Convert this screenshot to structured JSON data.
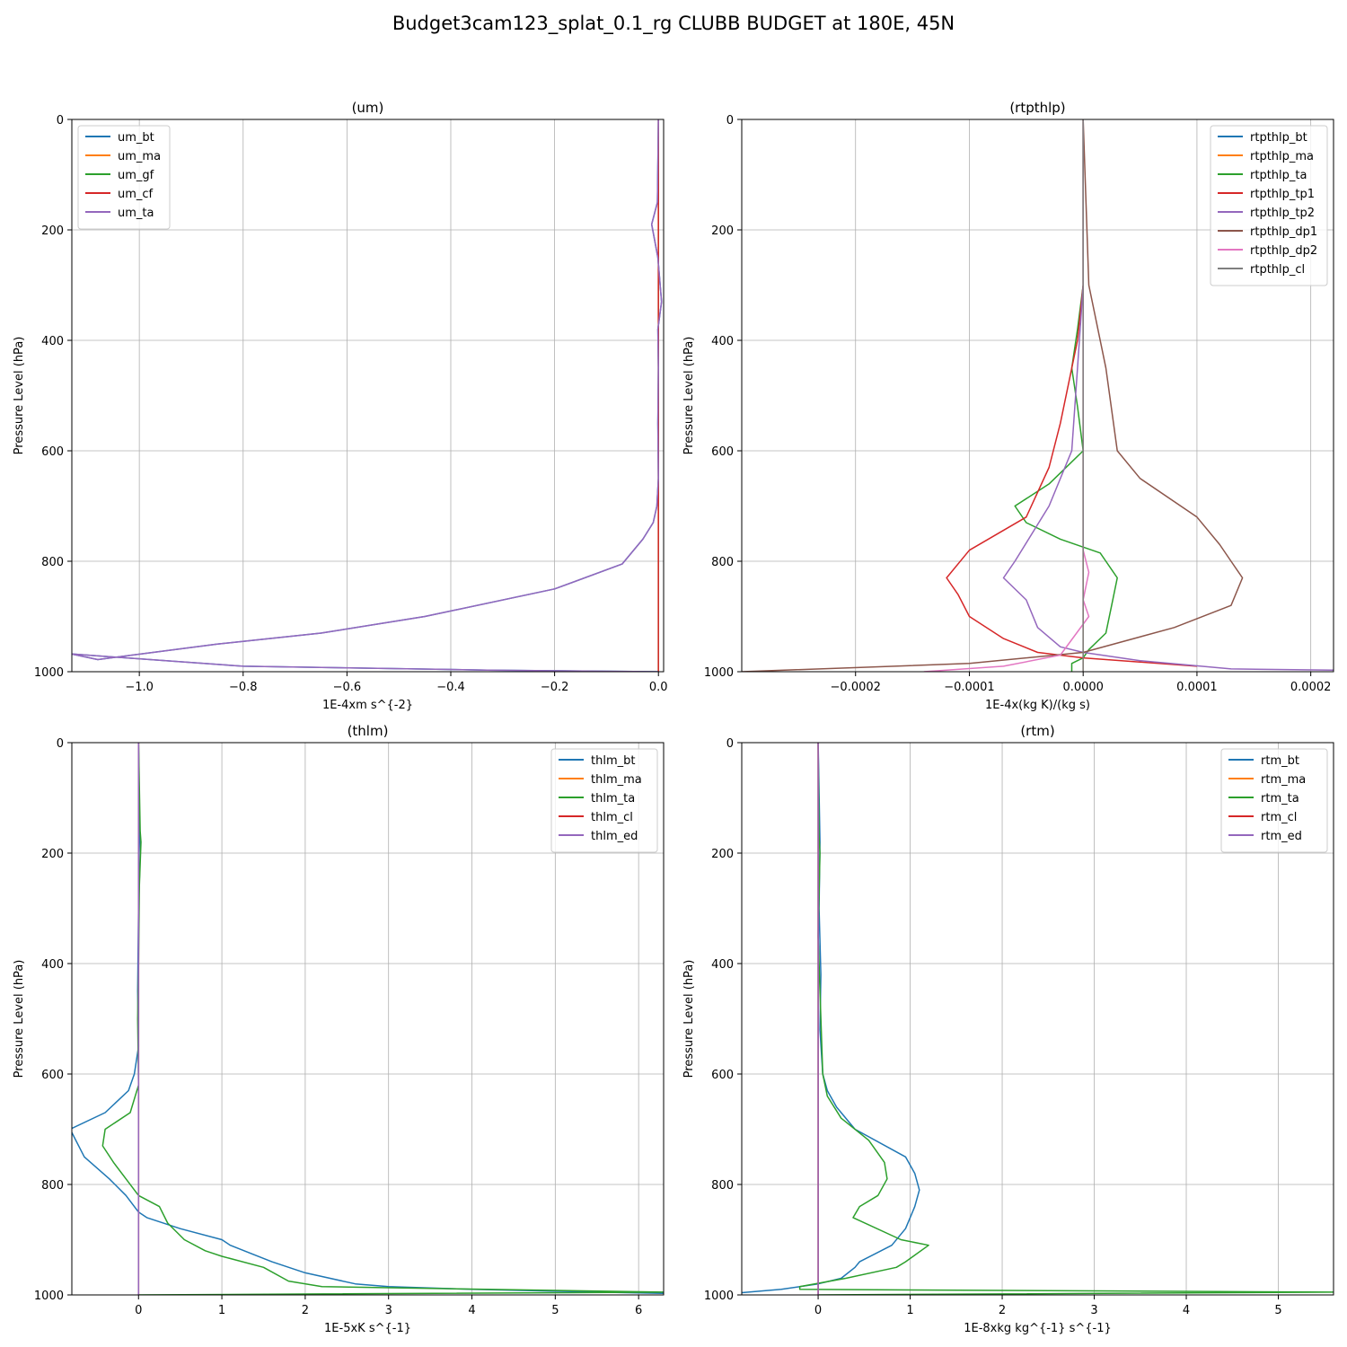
{
  "suptitle": "Budget3cam123_splat_0.1_rg CLUBB BUDGET at 180E, 45N",
  "chart_data": [
    {
      "type": "line",
      "title": "(um)",
      "xlabel": "1E-4xm s^{-2}",
      "ylabel": "Pressure Level (hPa)",
      "xlim": [
        -1.13,
        0.01
      ],
      "ylim": [
        1000,
        0
      ],
      "xticks": [
        -1.0,
        -0.8,
        -0.6,
        -0.4,
        -0.2,
        0.0
      ],
      "xtick_labels": [
        "−1.0",
        "−0.8",
        "−0.6",
        "−0.4",
        "−0.2",
        "0.0"
      ],
      "yticks": [
        0,
        200,
        400,
        600,
        800,
        1000
      ],
      "ytick_labels": [
        "0",
        "200",
        "400",
        "600",
        "800",
        "1000"
      ],
      "grid": true,
      "legend_loc": "top-left",
      "series": [
        {
          "name": "um_bt",
          "color": "#1f77b4",
          "x": [
            0,
            -0.002,
            -0.013,
            -0.001,
            0.006,
            -0.001,
            0.0,
            -0.001,
            0.0,
            -0.003,
            -0.01,
            -0.03,
            -0.07,
            -0.2,
            -0.45,
            -0.65,
            -0.85,
            -1.08,
            -1.13,
            -0.8,
            -0.33,
            0
          ],
          "y": [
            0,
            150,
            190,
            250,
            330,
            380,
            450,
            550,
            650,
            700,
            730,
            760,
            805,
            850,
            900,
            930,
            950,
            978,
            968,
            990,
            997,
            1000
          ]
        },
        {
          "name": "um_ma",
          "color": "#ff7f0e",
          "x": [
            0,
            0,
            0,
            0,
            0,
            0
          ],
          "y": [
            0,
            200,
            400,
            600,
            800,
            1000
          ]
        },
        {
          "name": "um_gf",
          "color": "#2ca02c",
          "x": [
            0,
            0,
            0,
            0,
            0,
            0
          ],
          "y": [
            0,
            200,
            400,
            600,
            800,
            1000
          ]
        },
        {
          "name": "um_cf",
          "color": "#d62728",
          "x": [
            0,
            0,
            0,
            0,
            0,
            0
          ],
          "y": [
            0,
            200,
            400,
            600,
            800,
            1000
          ]
        },
        {
          "name": "um_ta",
          "color": "#9467bd",
          "x": [
            0,
            -0.002,
            -0.013,
            -0.001,
            0.006,
            -0.001,
            0.0,
            -0.001,
            0.0,
            -0.003,
            -0.01,
            -0.03,
            -0.07,
            -0.2,
            -0.45,
            -0.65,
            -0.85,
            -1.08,
            -1.13,
            -0.8,
            -0.33,
            0
          ],
          "y": [
            0,
            150,
            190,
            250,
            330,
            380,
            450,
            550,
            650,
            700,
            730,
            760,
            805,
            850,
            900,
            930,
            950,
            978,
            968,
            990,
            997,
            1000
          ]
        }
      ]
    },
    {
      "type": "line",
      "title": "(rtpthlp)",
      "xlabel": "1E-4x(kg K)/(kg s)",
      "ylabel": "Pressure Level (hPa)",
      "xlim": [
        -0.0003,
        0.00022
      ],
      "ylim": [
        1000,
        0
      ],
      "xticks": [
        -0.0002,
        -0.0001,
        0.0,
        0.0001,
        0.0002
      ],
      "xtick_labels": [
        "−0.0002",
        "−0.0001",
        "0.0000",
        "0.0001",
        "0.0002"
      ],
      "yticks": [
        0,
        200,
        400,
        600,
        800,
        1000
      ],
      "ytick_labels": [
        "0",
        "200",
        "400",
        "600",
        "800",
        "1000"
      ],
      "grid": true,
      "legend_loc": "top-right",
      "series": [
        {
          "name": "rtpthlp_bt",
          "color": "#1f77b4",
          "x": [
            0,
            0,
            0,
            0,
            0
          ],
          "y": [
            0,
            300,
            600,
            900,
            1000
          ]
        },
        {
          "name": "rtpthlp_ma",
          "color": "#ff7f0e",
          "x": [
            0,
            0,
            0,
            0,
            0
          ],
          "y": [
            0,
            300,
            600,
            900,
            1000
          ]
        },
        {
          "name": "rtpthlp_ta",
          "color": "#2ca02c",
          "x": [
            0,
            0,
            -5e-06,
            -1e-05,
            -5e-06,
            0,
            -3e-05,
            -6e-05,
            -5e-05,
            -2e-05,
            1.5e-05,
            2e-05,
            3e-05,
            2.5e-05,
            2e-05,
            5e-06,
            0.0,
            -1e-05,
            -1e-05
          ],
          "y": [
            0,
            300,
            380,
            450,
            520,
            600,
            660,
            700,
            730,
            760,
            785,
            800,
            830,
            880,
            930,
            960,
            975,
            985,
            1000
          ]
        },
        {
          "name": "rtpthlp_tp1",
          "color": "#d62728",
          "x": [
            0,
            0,
            -5e-06,
            -2e-05,
            -3e-05,
            -5e-05,
            -0.0001,
            -0.00012,
            -0.00011,
            -0.0001,
            -7e-05,
            -4e-05,
            0.0,
            0.0001
          ],
          "y": [
            0,
            300,
            400,
            550,
            630,
            720,
            780,
            830,
            860,
            900,
            940,
            965,
            975,
            990
          ]
        },
        {
          "name": "rtpthlp_tp2",
          "color": "#9467bd",
          "x": [
            0,
            0,
            -5e-06,
            -1e-05,
            -3e-05,
            -6e-05,
            -7e-05,
            -5e-05,
            -4e-05,
            -2e-05,
            0.0,
            5e-05,
            0.00013,
            0.00022
          ],
          "y": [
            0,
            300,
            450,
            600,
            700,
            800,
            830,
            870,
            920,
            955,
            965,
            980,
            995,
            997
          ]
        },
        {
          "name": "rtpthlp_dp1",
          "color": "#8c564b",
          "x": [
            0,
            5e-06,
            2e-05,
            3e-05,
            5e-05,
            0.0001,
            0.00012,
            0.00013,
            0.00014,
            0.00013,
            8e-05,
            0.0,
            -0.0001,
            -0.0003
          ],
          "y": [
            0,
            300,
            450,
            600,
            650,
            720,
            770,
            800,
            830,
            880,
            920,
            965,
            985,
            1000
          ]
        },
        {
          "name": "rtpthlp_dp2",
          "color": "#e377c2",
          "x": [
            0,
            0,
            5e-06,
            0.0,
            5e-06,
            -2e-05,
            -7e-05,
            -0.00014
          ],
          "y": [
            0,
            780,
            820,
            870,
            900,
            970,
            990,
            1000
          ]
        },
        {
          "name": "rtpthlp_cl",
          "color": "#7f7f7f",
          "x": [
            0,
            0,
            0,
            0
          ],
          "y": [
            0,
            500,
            900,
            1000
          ]
        }
      ]
    },
    {
      "type": "line",
      "title": "(thlm)",
      "xlabel": "1E-5xK s^{-1}",
      "ylabel": "Pressure Level (hPa)",
      "xlim": [
        -0.8,
        6.3
      ],
      "ylim": [
        1000,
        0
      ],
      "xticks": [
        0,
        1,
        2,
        3,
        4,
        5,
        6
      ],
      "xtick_labels": [
        "0",
        "1",
        "2",
        "3",
        "4",
        "5",
        "6"
      ],
      "yticks": [
        0,
        200,
        400,
        600,
        800,
        1000
      ],
      "ytick_labels": [
        "0",
        "200",
        "400",
        "600",
        "800",
        "1000"
      ],
      "grid": true,
      "legend_loc": "top-right",
      "series": [
        {
          "name": "thlm_bt",
          "color": "#1f77b4",
          "x": [
            0,
            0.01,
            0.02,
            0.0,
            -0.01,
            0.0,
            -0.05,
            -0.12,
            -0.4,
            -0.82,
            -0.65,
            -0.35,
            -0.15,
            0.0,
            0.1,
            0.5,
            1.0,
            1.1,
            1.6,
            2.0,
            2.6,
            3.0,
            4.0,
            5.5,
            6.3
          ],
          "y": [
            0,
            150,
            200,
            300,
            450,
            550,
            600,
            630,
            670,
            700,
            750,
            790,
            820,
            850,
            860,
            880,
            900,
            910,
            940,
            960,
            980,
            985,
            990,
            995,
            997
          ]
        },
        {
          "name": "thlm_ma",
          "color": "#ff7f0e",
          "x": [
            0,
            0,
            0,
            0
          ],
          "y": [
            0,
            400,
            800,
            1000
          ]
        },
        {
          "name": "thlm_ta",
          "color": "#2ca02c",
          "x": [
            0,
            0.02,
            0.03,
            0.01,
            0.0,
            -0.01,
            0.0,
            -0.1,
            -0.4,
            -0.43,
            -0.3,
            -0.15,
            0.0,
            0.25,
            0.35,
            0.55,
            0.8,
            1.0,
            1.5,
            1.8,
            2.2,
            6.3,
            0.0
          ],
          "y": [
            0,
            160,
            180,
            260,
            400,
            500,
            620,
            670,
            700,
            730,
            760,
            790,
            820,
            840,
            870,
            900,
            920,
            930,
            950,
            975,
            985,
            995,
            1000
          ]
        },
        {
          "name": "thlm_cl",
          "color": "#d62728",
          "x": [
            0,
            0,
            0,
            0
          ],
          "y": [
            0,
            400,
            800,
            1000
          ]
        },
        {
          "name": "thlm_ed",
          "color": "#9467bd",
          "x": [
            0,
            0,
            0,
            0
          ],
          "y": [
            0,
            400,
            800,
            1000
          ]
        }
      ]
    },
    {
      "type": "line",
      "title": "(rtm)",
      "xlabel": "1E-8xkg kg^{-1} s^{-1}",
      "ylabel": "Pressure Level (hPa)",
      "xlim": [
        -0.83,
        5.6
      ],
      "ylim": [
        1000,
        0
      ],
      "xticks": [
        0,
        1,
        2,
        3,
        4,
        5
      ],
      "xtick_labels": [
        "0",
        "1",
        "2",
        "3",
        "4",
        "5"
      ],
      "yticks": [
        0,
        200,
        400,
        600,
        800,
        1000
      ],
      "ytick_labels": [
        "0",
        "200",
        "400",
        "600",
        "800",
        "1000"
      ],
      "grid": true,
      "legend_loc": "top-right",
      "series": [
        {
          "name": "rtm_bt",
          "color": "#1f77b4",
          "x": [
            0,
            0.02,
            0.01,
            0.03,
            0.02,
            0.05,
            0.1,
            0.2,
            0.4,
            0.95,
            1.05,
            1.1,
            1.05,
            0.95,
            0.8,
            0.45,
            0.4,
            0.25,
            0.0,
            -0.4,
            -0.83
          ],
          "y": [
            0,
            180,
            300,
            420,
            520,
            600,
            630,
            660,
            700,
            750,
            780,
            810,
            840,
            880,
            910,
            940,
            950,
            970,
            980,
            990,
            996
          ]
        },
        {
          "name": "rtm_ma",
          "color": "#ff7f0e",
          "x": [
            0,
            0,
            0,
            0
          ],
          "y": [
            0,
            400,
            800,
            1000
          ]
        },
        {
          "name": "rtm_ta",
          "color": "#2ca02c",
          "x": [
            0,
            0.01,
            0.02,
            0.0,
            0.02,
            0.05,
            0.1,
            0.25,
            0.55,
            0.72,
            0.75,
            0.65,
            0.45,
            0.38,
            0.9,
            1.2,
            0.95,
            0.85,
            0.3,
            -0.2,
            -0.2,
            5.6,
            0.0
          ],
          "y": [
            0,
            170,
            200,
            350,
            450,
            600,
            640,
            680,
            720,
            760,
            790,
            820,
            840,
            860,
            900,
            910,
            940,
            950,
            970,
            985,
            990,
            995,
            1000
          ]
        },
        {
          "name": "rtm_cl",
          "color": "#d62728",
          "x": [
            0,
            0,
            0,
            0
          ],
          "y": [
            0,
            400,
            800,
            1000
          ]
        },
        {
          "name": "rtm_ed",
          "color": "#9467bd",
          "x": [
            0,
            0,
            0,
            0
          ],
          "y": [
            0,
            400,
            800,
            1000
          ]
        }
      ]
    }
  ]
}
